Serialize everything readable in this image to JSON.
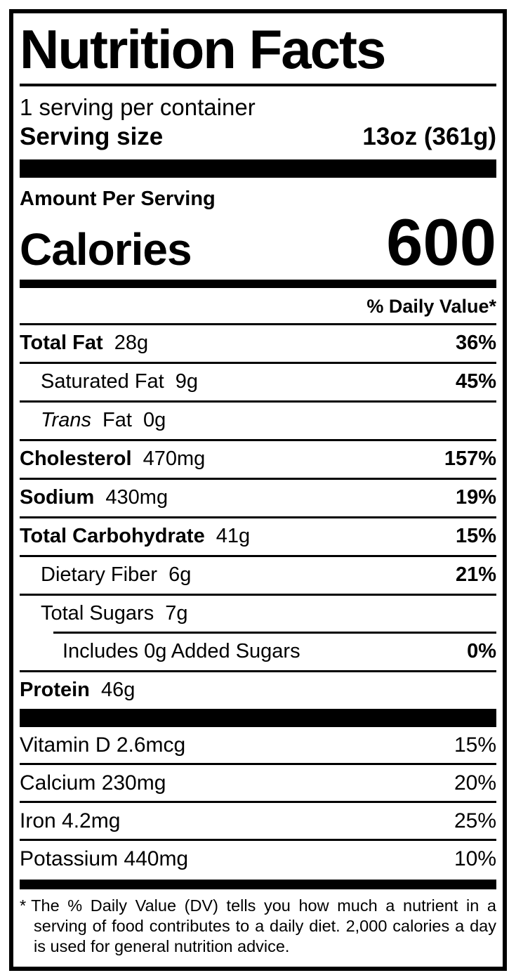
{
  "colors": {
    "ink": "#000000",
    "paper": "#ffffff"
  },
  "label": {
    "title": "Nutrition Facts",
    "servings_per_container": "1 serving per container",
    "serving_size": {
      "label": "Serving size",
      "value": "13oz (361g)"
    },
    "amount_per_serving": "Amount Per Serving",
    "calories": {
      "label": "Calories",
      "value": "600"
    },
    "daily_value_header": "% Daily Value*",
    "nutrients": [
      {
        "name": "Total Fat",
        "amount": "28g",
        "dv": "36%"
      },
      {
        "name": "Saturated Fat",
        "amount": "9g",
        "dv": "45%"
      },
      {
        "name_italic": "Trans",
        "name": "Fat",
        "amount": "0g",
        "dv": ""
      },
      {
        "name": "Cholesterol",
        "amount": "470mg",
        "dv": "157%"
      },
      {
        "name": "Sodium",
        "amount": "430mg",
        "dv": "19%"
      },
      {
        "name": "Total Carbohydrate",
        "amount": "41g",
        "dv": "15%"
      },
      {
        "name": "Dietary Fiber",
        "amount": "6g",
        "dv": "21%"
      },
      {
        "name": "Total Sugars",
        "amount": "7g",
        "dv": ""
      },
      {
        "name": "Includes 0g Added Sugars",
        "amount": "",
        "dv": "0%"
      },
      {
        "name": "Protein",
        "amount": "46g",
        "dv": ""
      }
    ],
    "micronutrients": [
      {
        "name": "Vitamin D 2.6mcg",
        "dv": "15%"
      },
      {
        "name": "Calcium 230mg",
        "dv": "20%"
      },
      {
        "name": "Iron 4.2mg",
        "dv": "25%"
      },
      {
        "name": "Potassium 440mg",
        "dv": "10%"
      }
    ],
    "footnote": {
      "marker": "*",
      "text": "The % Daily Value (DV) tells you how much a nutrient in a serving of food contributes to a daily diet. 2,000 calories a day is used for general nutrition advice."
    }
  }
}
